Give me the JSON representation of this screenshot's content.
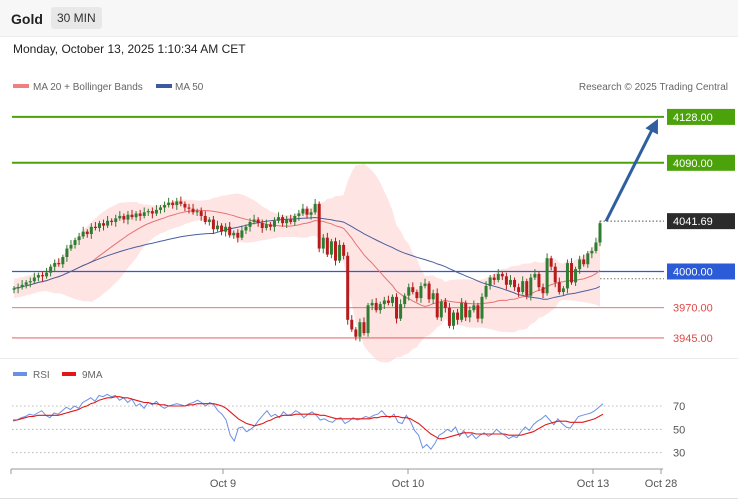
{
  "header": {
    "symbol": "Gold",
    "timeframe": "30 MIN",
    "datetime": "Monday, October 13, 2025 1:10:34 AM CET"
  },
  "legend": {
    "ma20": "MA 20 + Bollinger Bands",
    "ma50": "MA 50",
    "credit": "Research © 2025 Trading Central"
  },
  "rsi_legend": {
    "rsi": "RSI",
    "ma9": "9MA"
  },
  "colors": {
    "bull": "#2e7d32",
    "bear": "#b71c1c",
    "ma20": "#e57373",
    "ma50": "#4a5f9e",
    "band_fill": "#ffd6d6",
    "target": "#4ca20b",
    "pivot": "#2b5bd7",
    "support": "#e04848",
    "arrow": "#2f5f9f",
    "current": "#2b2b2b"
  },
  "chart_data": [
    {
      "type": "candlestick",
      "title": "Gold 30 MIN",
      "x_labels": [
        "Oct 9",
        "Oct 10",
        "Oct 13",
        "Oct 28"
      ],
      "ylim": [
        3935,
        4142
      ],
      "levels": [
        {
          "value": 4128.0,
          "label": "4128.00",
          "kind": "target"
        },
        {
          "value": 4090.0,
          "label": "4090.00",
          "kind": "target"
        },
        {
          "value": 4041.69,
          "label": "4041.69",
          "kind": "current"
        },
        {
          "value": 4000.0,
          "label": "4000.00",
          "kind": "pivot"
        },
        {
          "value": 3970.0,
          "label": "3970.00",
          "kind": "support"
        },
        {
          "value": 3945.0,
          "label": "3945.00",
          "kind": "support"
        }
      ],
      "closes": [
        3986,
        3987,
        3989,
        3991,
        3992,
        3995,
        3997,
        3996,
        3999,
        4004,
        4007,
        4006,
        4012,
        4019,
        4022,
        4026,
        4029,
        4033,
        4031,
        4037,
        4036,
        4040,
        4038,
        4042,
        4041,
        4044,
        4046,
        4043,
        4047,
        4045,
        4048,
        4046,
        4049,
        4050,
        4048,
        4051,
        4053,
        4055,
        4057,
        4055,
        4058,
        4056,
        4053,
        4052,
        4049,
        4050,
        4046,
        4041,
        4043,
        4035,
        4038,
        4033,
        4037,
        4030,
        4032,
        4028,
        4034,
        4037,
        4041,
        4043,
        4040,
        4036,
        4039,
        4037,
        4042,
        4045,
        4040,
        4043,
        4041,
        4046,
        4048,
        4052,
        4047,
        4049,
        4056,
        4019,
        4028,
        4014,
        4025,
        4009,
        4022,
        4013,
        3960,
        3952,
        3946,
        3958,
        3949,
        3972,
        3974,
        3968,
        3973,
        3976,
        3974,
        3979,
        3961,
        3973,
        3980,
        3987,
        3983,
        3978,
        3988,
        3990,
        3977,
        3982,
        3962,
        3975,
        3970,
        3955,
        3966,
        3960,
        3974,
        3962,
        3968,
        3972,
        3961,
        3979,
        3988,
        3995,
        3993,
        3998,
        3996,
        3989,
        3993,
        3987,
        3983,
        3992,
        3980,
        3995,
        3998,
        3987,
        3982,
        4011,
        4004,
        3991,
        3983,
        3986,
        4007,
        3991,
        4002,
        4010,
        4006,
        4015,
        4017,
        4024,
        4040
      ],
      "rsi": {
        "series": [
          {
            "name": "RSI",
            "values": [
              57,
              58,
              60,
              61,
              63,
              62,
              64,
              66,
              62,
              60,
              64,
              63,
              66,
              69,
              67,
              70,
              68,
              73,
              75,
              77,
              74,
              79,
              78,
              80,
              78,
              79,
              75,
              77,
              73,
              76,
              70,
              72,
              68,
              73,
              71,
              74,
              70,
              68,
              70,
              71,
              72,
              71,
              70,
              72,
              73,
              75,
              73,
              70,
              73,
              71,
              66,
              63,
              58,
              45,
              40,
              51,
              52,
              48,
              50,
              53,
              58,
              62,
              66,
              61,
              63,
              60,
              65,
              62,
              63,
              66,
              64,
              60,
              63,
              65,
              62,
              58,
              59,
              57,
              56,
              59,
              60,
              55,
              57,
              60,
              58,
              59,
              61,
              60,
              62,
              63,
              66,
              62,
              60,
              63,
              56,
              55,
              62,
              57,
              49,
              45,
              34,
              37,
              33,
              38,
              45,
              47,
              50,
              48,
              52,
              44,
              49,
              43,
              46,
              42,
              45,
              47,
              44,
              46,
              50,
              47,
              45,
              42,
              44,
              43,
              48,
              52,
              49,
              54,
              57,
              59,
              62,
              58,
              54,
              59,
              55,
              52,
              51,
              56,
              61,
              62,
              63,
              64,
              66,
              69,
              72
            ]
          },
          {
            "name": "9MA",
            "values": [
              58,
              58,
              59,
              60,
              61,
              61,
              62,
              62,
              62,
              62,
              62,
              62,
              63,
              64,
              65,
              66,
              67,
              69,
              70,
              72,
              73,
              75,
              76,
              77,
              77,
              78,
              78,
              77,
              77,
              76,
              75,
              74,
              73,
              73,
              72,
              72,
              71,
              71,
              70,
              70,
              70,
              70,
              70,
              71,
              71,
              72,
              72,
              72,
              72,
              72,
              71,
              70,
              68,
              65,
              62,
              59,
              57,
              55,
              54,
              53,
              54,
              55,
              57,
              58,
              60,
              61,
              62,
              62,
              62,
              63,
              63,
              63,
              63,
              63,
              63,
              62,
              62,
              61,
              60,
              59,
              59,
              59,
              59,
              59,
              59,
              59,
              59,
              59,
              60,
              60,
              61,
              61,
              61,
              61,
              61,
              60,
              60,
              59,
              57,
              55,
              52,
              49,
              46,
              44,
              42,
              42,
              43,
              44,
              45,
              46,
              47,
              47,
              47,
              46,
              46,
              46,
              46,
              46,
              46,
              46,
              46,
              45,
              45,
              45,
              45,
              46,
              47,
              48,
              50,
              52,
              54,
              55,
              56,
              57,
              57,
              57,
              56,
              56,
              56,
              56,
              57,
              58,
              59,
              61,
              63
            ]
          }
        ],
        "ylim": [
          22,
          82
        ],
        "ticks": [
          70,
          50,
          30
        ]
      }
    }
  ]
}
